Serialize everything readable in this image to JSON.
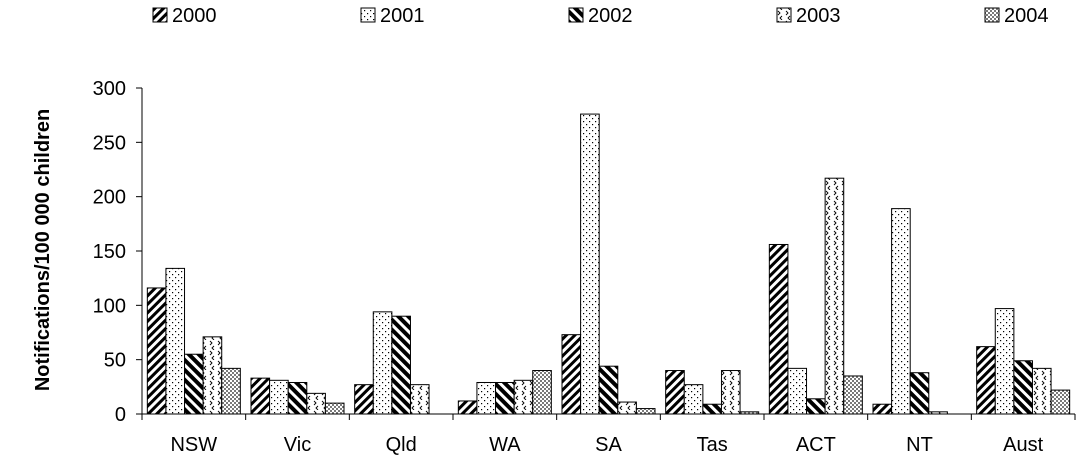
{
  "chart_data": {
    "type": "bar",
    "title": "",
    "xlabel": "",
    "ylabel": "Notifications/100 000 children",
    "ylim": [
      0,
      300
    ],
    "yticks": [
      "0",
      "50",
      "100",
      "150",
      "200",
      "250",
      "300"
    ],
    "categories": [
      "NSW",
      "Vic",
      "Qld",
      "WA",
      "SA",
      "Tas",
      "ACT",
      "NT",
      "Aust"
    ],
    "legend_position": "top",
    "grid": false,
    "series": [
      {
        "name": "2000",
        "pattern": "diagonal-dense",
        "values": [
          116,
          33,
          27,
          12,
          73,
          40,
          156,
          9,
          62
        ]
      },
      {
        "name": "2001",
        "pattern": "dots",
        "values": [
          134,
          31,
          94,
          29,
          276,
          27,
          42,
          189,
          97
        ]
      },
      {
        "name": "2002",
        "pattern": "diagonal-bold",
        "values": [
          55,
          29,
          90,
          29,
          44,
          9,
          14,
          38,
          49
        ]
      },
      {
        "name": "2003",
        "pattern": "chevrons",
        "values": [
          71,
          19,
          27,
          31,
          11,
          40,
          217,
          2,
          42
        ]
      },
      {
        "name": "2004",
        "pattern": "crosshatch",
        "values": [
          42,
          10,
          0,
          40,
          5,
          2,
          35,
          0,
          22
        ]
      }
    ]
  }
}
